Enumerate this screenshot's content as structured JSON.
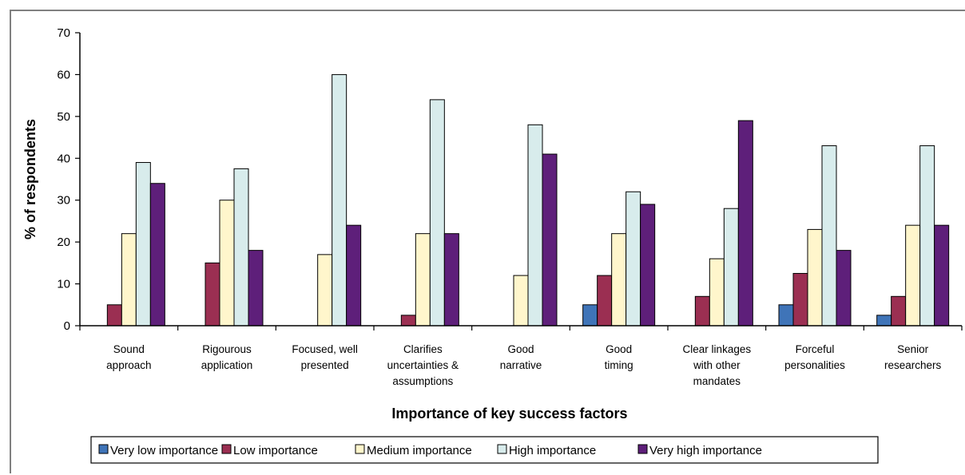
{
  "chart_data": {
    "type": "bar",
    "title": "",
    "xlabel": "Importance of key success factors",
    "ylabel": "% of respondents",
    "ylim": [
      0,
      70
    ],
    "yticks": [
      0,
      10,
      20,
      30,
      40,
      50,
      60,
      70
    ],
    "grid": false,
    "legend_position": "bottom",
    "categories": [
      [
        "Sound",
        "approach"
      ],
      [
        "Rigourous",
        "application"
      ],
      [
        "Focused, well",
        "presented"
      ],
      [
        "Clarifies",
        "uncertainties &",
        "assumptions"
      ],
      [
        "Good",
        "narrative"
      ],
      [
        "Good",
        "timing"
      ],
      [
        "Clear linkages",
        "with other",
        "mandates"
      ],
      [
        "Forceful",
        "personalities"
      ],
      [
        "Senior",
        "researchers"
      ]
    ],
    "series": [
      {
        "name": "Very low importance",
        "color": "#3f74b8",
        "values": [
          0,
          0,
          0,
          0,
          0,
          5,
          0,
          5,
          2.5
        ]
      },
      {
        "name": "Low importance",
        "color": "#9b2f52",
        "values": [
          5,
          15,
          0,
          2.5,
          0,
          12,
          7,
          12.5,
          7
        ]
      },
      {
        "name": "Medium importance",
        "color": "#fff6cc",
        "values": [
          22,
          30,
          17,
          22,
          12,
          22,
          16,
          23,
          24
        ]
      },
      {
        "name": "High importance",
        "color": "#d8ecec",
        "values": [
          39,
          37.5,
          60,
          54,
          48,
          32,
          28,
          43,
          43
        ]
      },
      {
        "name": "Very high importance",
        "color": "#5e1f7a",
        "values": [
          34,
          18,
          24,
          22,
          41,
          29,
          49,
          18,
          24
        ]
      }
    ]
  }
}
